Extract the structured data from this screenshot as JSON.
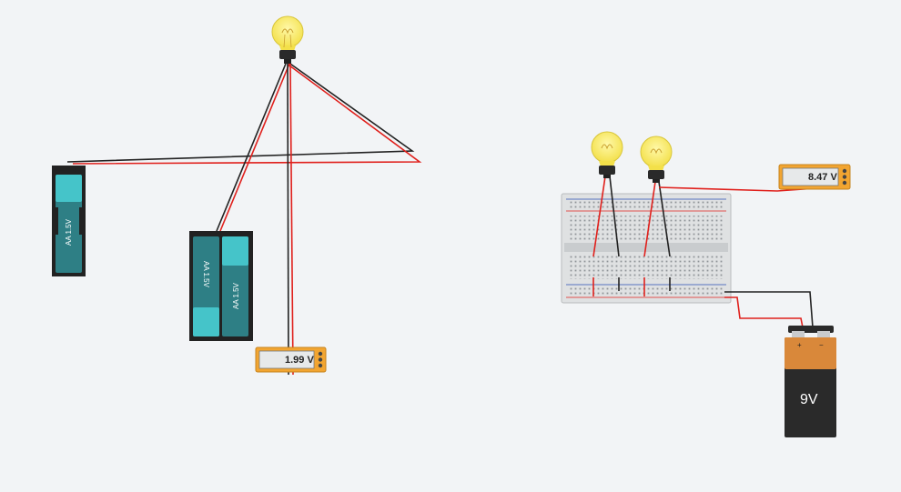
{
  "workspace": {
    "background": "#f2f4f6"
  },
  "circuit_left": {
    "bulb_icon": "light-bulb-icon",
    "single_holder": {
      "cell_label": "AA 1.5V"
    },
    "double_holder": {
      "cell1_label": "AA 1.5V",
      "cell2_label": "AA 1.5V"
    },
    "multimeter": {
      "reading": "1.99 V"
    }
  },
  "circuit_right": {
    "bulb_icon": "light-bulb-icon",
    "multimeter": {
      "reading": "8.47 V"
    },
    "battery_9v": {
      "label": "9V",
      "plus": "+",
      "minus": "−"
    }
  },
  "colors": {
    "wire_red": "#e0201c",
    "wire_black": "#222222",
    "cell_teal": "#2e7f85",
    "cell_cap": "#45c4c9",
    "multimeter_body": "#f2a531",
    "battery_copper": "#d9883a"
  }
}
